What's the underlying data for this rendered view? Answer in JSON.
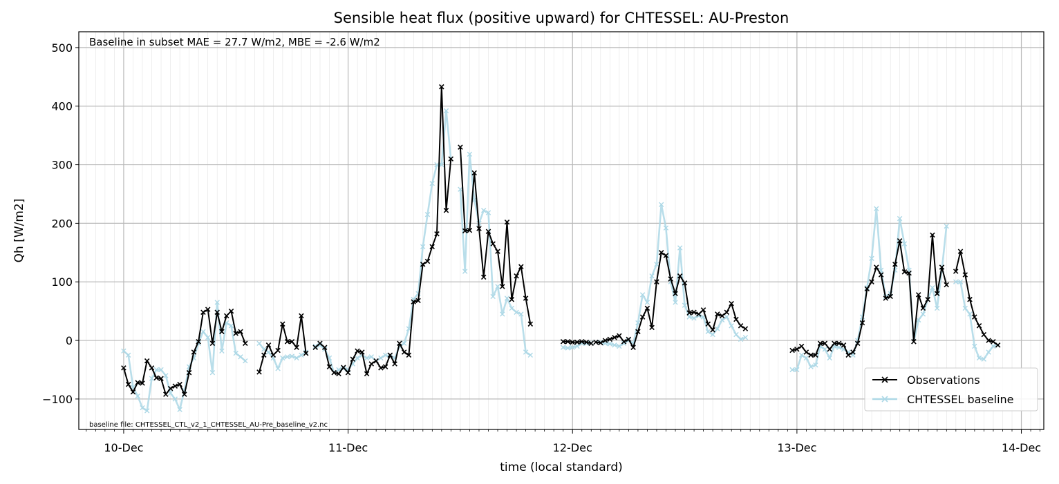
{
  "chart_data": {
    "type": "line",
    "title": "Sensible heat flux (positive upward) for CHTESSEL: AU-Preston",
    "xlabel": "time (local standard)",
    "ylabel": "Qh [W/m2]",
    "annotation_top": "Baseline in subset MAE = 27.7 W/m2, MBE = -2.6 W/m2",
    "annotation_bottom": "baseline file: CHTESSEL_CTL_v2_1_CHTESSEL_AU-Pre_baseline_v2.nc",
    "x_unit": "days",
    "xlim": [
      -0.2,
      4.1
    ],
    "ylim": [
      -152,
      527
    ],
    "yticks": [
      -100,
      0,
      100,
      200,
      300,
      400,
      500
    ],
    "xticks": [
      {
        "pos": 0,
        "label": "10-Dec"
      },
      {
        "pos": 1,
        "label": "11-Dec"
      },
      {
        "pos": 2,
        "label": "12-Dec"
      },
      {
        "pos": 3,
        "label": "13-Dec"
      },
      {
        "pos": 4,
        "label": "14-Dec"
      }
    ],
    "grid": true,
    "legend_position": "lower-right",
    "series": [
      {
        "name": "Observations",
        "color": "#000000",
        "marker": "x",
        "segments": [
          {
            "start": 0.0,
            "step": 0.02083,
            "values": [
              -47,
              -75,
              -88,
              -72,
              -73,
              -35,
              -47,
              -64,
              -65,
              -92,
              -82,
              -78,
              -75,
              -92,
              -55,
              -20,
              -2,
              48,
              53,
              -5,
              48,
              15,
              42,
              50,
              12,
              15,
              -5
            ]
          },
          {
            "start": 0.604,
            "step": 0.02083,
            "values": [
              -54,
              -25,
              -8,
              -25,
              -17,
              28,
              -2,
              -2,
              -12,
              42,
              -22
            ]
          },
          {
            "start": 0.854,
            "step": 0.02083,
            "values": [
              -12,
              -5,
              -12,
              -45,
              -55,
              -57,
              -46,
              -55,
              -32,
              -18,
              -20,
              -57,
              -40,
              -35,
              -47,
              -45,
              -25,
              -40,
              -5,
              -20,
              -25,
              66,
              68,
              130,
              135,
              160,
              182,
              433,
              222,
              310
            ]
          },
          {
            "start": 1.5,
            "step": 0.02083,
            "values": [
              330,
              187,
              188,
              286,
              191,
              108,
              186,
              165,
              152,
              92,
              202,
              70,
              110,
              126,
              72,
              28
            ]
          },
          {
            "start": 1.958,
            "step": 0.02083,
            "values": [
              -2,
              -2,
              -3,
              -3,
              -2,
              -3,
              -5
            ]
          },
          {
            "start": 2.104,
            "step": 0.02083,
            "values": [
              -3,
              -4,
              0,
              2,
              5,
              8,
              -2,
              2,
              -12,
              15,
              40,
              55,
              22,
              100,
              150,
              145,
              105,
              80,
              110,
              98,
              47,
              48,
              45,
              52,
              28,
              18,
              45,
              42,
              48,
              63,
              36,
              25,
              20
            ]
          },
          {
            "start": 2.979,
            "step": 0.02083,
            "values": [
              -17,
              -15,
              -10,
              -20,
              -25,
              -25,
              -5,
              -5,
              -15,
              -5,
              -5,
              -8,
              -25,
              -20,
              -5,
              30,
              88,
              100,
              125,
              112,
              72,
              75,
              130,
              170,
              117,
              115,
              -2,
              78,
              55,
              70,
              180,
              80,
              125,
              95
            ]
          },
          {
            "start": 3.708,
            "step": 0.02083,
            "values": [
              118,
              152,
              112,
              70,
              40,
              25,
              10,
              0,
              -2,
              -8
            ]
          }
        ]
      },
      {
        "name": "CHTESSEL baseline",
        "color": "#add8e6",
        "marker": "x",
        "segments": [
          {
            "start": 0.0,
            "step": 0.02083,
            "values": [
              -18,
              -25,
              -80,
              -95,
              -115,
              -120,
              -65,
              -50,
              -50,
              -60,
              -90,
              -100,
              -118,
              -85,
              -45,
              -30,
              -5,
              15,
              5,
              -55,
              65,
              -18,
              30,
              25,
              -22,
              -28,
              -35
            ]
          },
          {
            "start": 0.604,
            "step": 0.02083,
            "values": [
              -5,
              -15,
              -20,
              -30,
              -48,
              -30,
              -28,
              -27,
              -30,
              -25,
              -20
            ]
          },
          {
            "start": 0.854,
            "step": 0.02083,
            "values": [
              -10,
              -8,
              -15,
              -30,
              -55,
              -50,
              -48,
              -50,
              -40,
              -30,
              -25,
              -30,
              -28,
              -35,
              -30,
              -25,
              -28,
              -30,
              -10,
              -5,
              20,
              70,
              80,
              160,
              215,
              268,
              300,
              300,
              392,
              310
            ]
          },
          {
            "start": 1.5,
            "step": 0.02083,
            "values": [
              258,
              118,
              318,
              240,
              200,
              222,
              218,
              75,
              92,
              45,
              72,
              55,
              48,
              45,
              -20,
              -25
            ]
          },
          {
            "start": 1.958,
            "step": 0.02083,
            "values": [
              -12,
              -13,
              -12,
              -10,
              -5,
              -5,
              -4
            ]
          },
          {
            "start": 2.104,
            "step": 0.02083,
            "values": [
              -3,
              -3,
              -5,
              -6,
              -8,
              -10,
              -5,
              0,
              -5,
              30,
              78,
              65,
              110,
              130,
              232,
              192,
              100,
              65,
              158,
              60,
              40,
              38,
              42,
              40,
              15,
              10,
              20,
              35,
              40,
              25,
              10,
              2,
              5
            ]
          },
          {
            "start": 2.979,
            "step": 0.02083,
            "values": [
              -50,
              -50,
              -25,
              -30,
              -45,
              -42,
              -10,
              -15,
              -30,
              -10,
              -12,
              -15,
              -20,
              -25,
              0,
              40,
              90,
              140,
              225,
              120,
              75,
              80,
              120,
              208,
              165,
              120,
              -2,
              35,
              45,
              70,
              90,
              55,
              120,
              195
            ]
          },
          {
            "start": 3.708,
            "step": 0.02083,
            "values": [
              100,
              100,
              55,
              45,
              -10,
              -30,
              -32,
              -20,
              -10,
              -8
            ]
          }
        ]
      }
    ]
  }
}
